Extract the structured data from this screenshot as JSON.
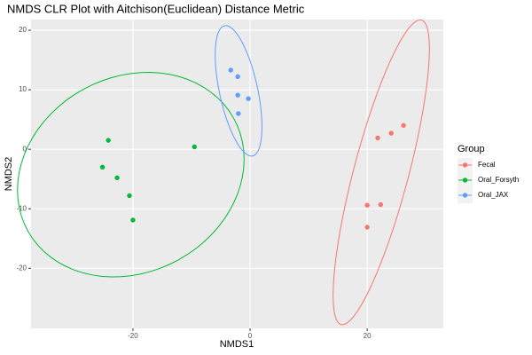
{
  "chart_data": {
    "type": "scatter",
    "title": "NMDS CLR Plot with Aitchison(Euclidean) Distance Metric",
    "x_label": "NMDS1",
    "y_label": "NMDS2",
    "legend_title": "Group",
    "xlim": [
      -37.4,
      33.0
    ],
    "ylim": [
      -30.1,
      21.8
    ],
    "xticks": [
      -20,
      0,
      20
    ],
    "yticks": [
      -20,
      -10,
      0,
      10,
      20
    ],
    "grid": true,
    "ellipses": true,
    "legend_position": "right",
    "series": [
      {
        "name": "Fecal",
        "color": "#F8766D",
        "x": [
          26.2,
          24.1,
          21.8,
          22.3,
          20.0,
          20.0
        ],
        "values": [
          4.0,
          2.7,
          1.9,
          -9.3,
          -9.4,
          -13.1
        ]
      },
      {
        "name": "Oral_Forsyth",
        "color": "#00BA38",
        "x": [
          -24.2,
          -9.5,
          -25.2,
          -22.7,
          -20.6,
          -20.0
        ],
        "values": [
          1.5,
          0.4,
          -3.0,
          -4.8,
          -7.8,
          -11.9
        ]
      },
      {
        "name": "Oral_JAX",
        "color": "#619CFF",
        "x": [
          -3.3,
          -2.1,
          -2.1,
          -0.3,
          -2.0
        ],
        "values": [
          13.3,
          12.2,
          9.1,
          8.5,
          6.0
        ]
      }
    ]
  }
}
